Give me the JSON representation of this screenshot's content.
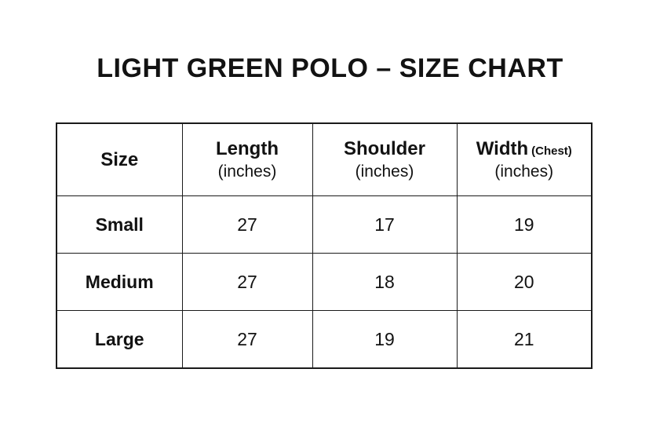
{
  "page": {
    "background": "#ffffff",
    "text_color": "#121212",
    "border_color": "#1a1a1a"
  },
  "title": "LIGHT GREEN POLO – SIZE CHART",
  "table": {
    "headers": [
      {
        "name": "Size",
        "sub": "",
        "note": ""
      },
      {
        "name": "Length",
        "sub": "(inches)",
        "note": ""
      },
      {
        "name": "Shoulder",
        "sub": "(inches)",
        "note": ""
      },
      {
        "name": "Width",
        "sub": "(inches)",
        "note": "(Chest)"
      }
    ],
    "rows": [
      {
        "size": "Small",
        "length": "27",
        "shoulder": "17",
        "width": "19"
      },
      {
        "size": "Medium",
        "length": "27",
        "shoulder": "18",
        "width": "20"
      },
      {
        "size": "Large",
        "length": "27",
        "shoulder": "19",
        "width": "21"
      }
    ]
  },
  "chart_data": {
    "type": "table",
    "title": "LIGHT GREEN POLO – SIZE CHART",
    "columns": [
      "Size",
      "Length (inches)",
      "Shoulder (inches)",
      "Width (Chest) (inches)"
    ],
    "rows": [
      [
        "Small",
        27,
        17,
        19
      ],
      [
        "Medium",
        27,
        18,
        20
      ],
      [
        "Large",
        27,
        19,
        21
      ]
    ],
    "layout_hints": {
      "grid": "all-borders",
      "header_row": true,
      "alignment": "center"
    }
  }
}
